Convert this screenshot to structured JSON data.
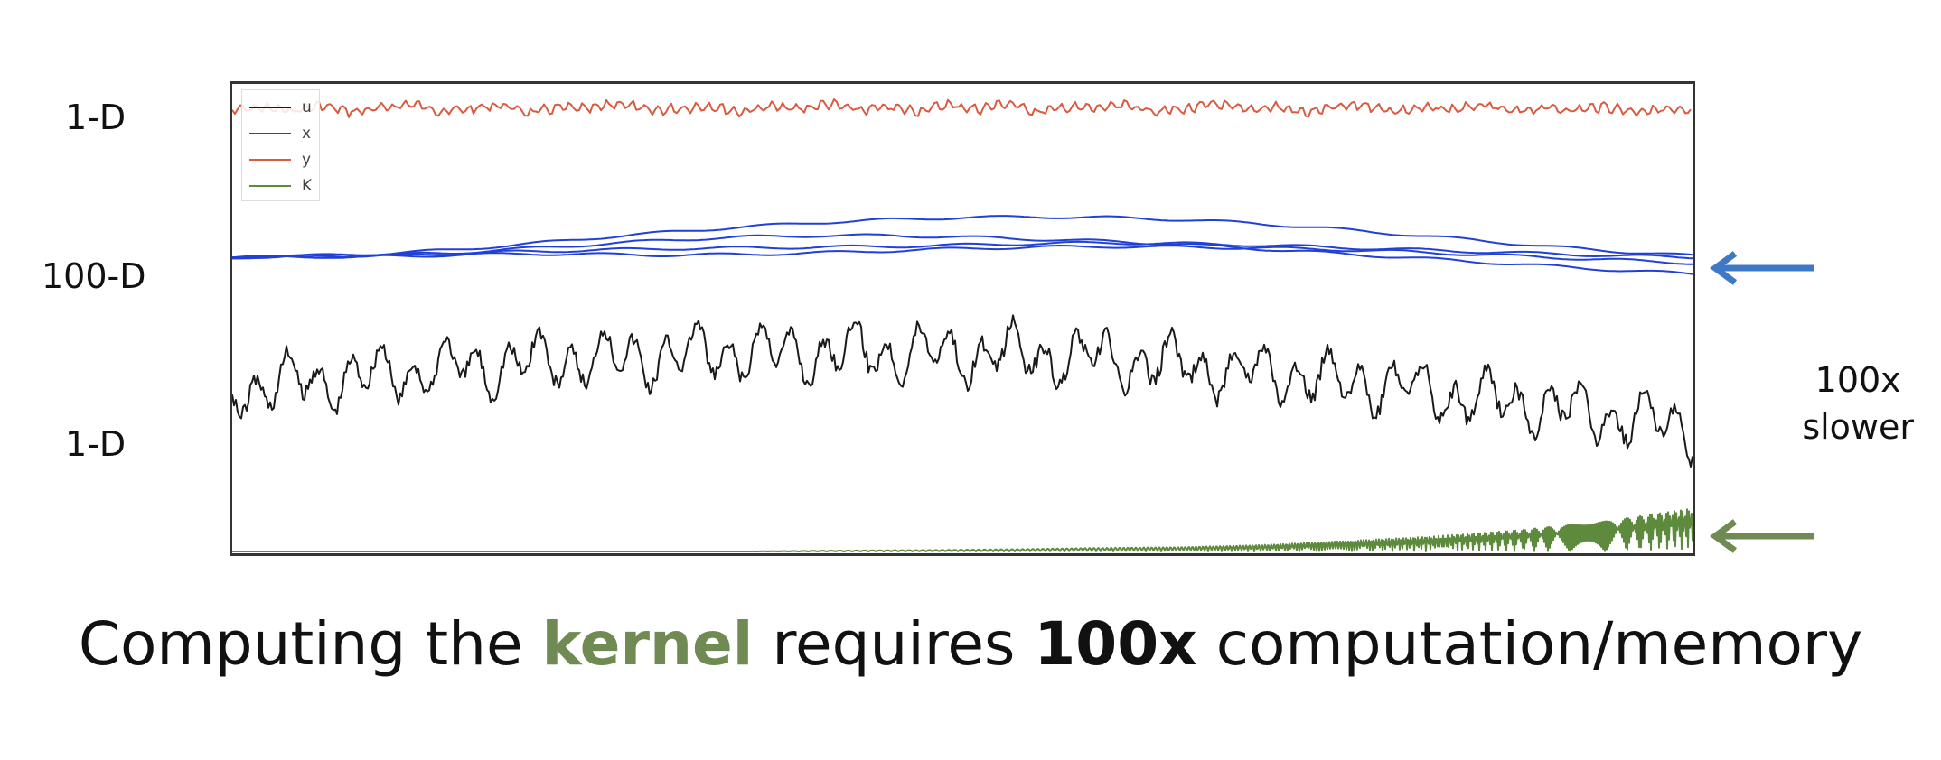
{
  "row_labels": {
    "top": "1-D",
    "middle": "100-D",
    "bottom": "1-D"
  },
  "side_label": {
    "line1": "100x",
    "line2": "slower"
  },
  "caption": {
    "part1": "Computing the ",
    "keyword": "kernel",
    "part2": " requires ",
    "emphasis": "100x",
    "part3": " computation/memory"
  },
  "colors": {
    "u": "#1a1a1a",
    "x": "#2140d8",
    "y": "#d95a3f",
    "K": "#5d8a3c",
    "keyword": "#6f8a52",
    "arrow_blue": "#3f78c4",
    "arrow_green": "#6f8a52"
  },
  "chart_data": {
    "type": "line",
    "legend": [
      "u",
      "x",
      "y",
      "K"
    ],
    "legend_position": "top-left",
    "grid": false,
    "axes_ticks": false,
    "series": [
      {
        "name": "y",
        "dimension": "1-D",
        "values": [
          0.55,
          0.7,
          0.5,
          0.8,
          0.45,
          0.65,
          0.9,
          0.5,
          0.6,
          0.85,
          0.4,
          0.7,
          0.6,
          0.95,
          0.5,
          0.65,
          0.8,
          0.45,
          0.75,
          0.6,
          0.9,
          0.55,
          0.7,
          0.5,
          0.85,
          0.6,
          0.95,
          0.45,
          0.7,
          0.65,
          0.8,
          0.5,
          0.6,
          0.9,
          0.55,
          0.75,
          0.4,
          0.7,
          0.85,
          0.5,
          0.65,
          0.6,
          0.8,
          0.45,
          0.7,
          0.55,
          0.75,
          0.5,
          0.6,
          0.4
        ]
      },
      {
        "name": "x",
        "dimension": "100-D",
        "traces": [
          [
            0.0,
            0.02,
            0.05,
            0.1,
            0.18,
            0.27,
            0.35,
            0.42,
            0.48,
            0.52,
            0.55,
            0.56,
            0.55,
            0.52,
            0.47,
            0.4,
            0.32,
            0.24,
            0.15,
            0.08,
            0.02
          ],
          [
            0.0,
            0.01,
            0.03,
            0.06,
            0.12,
            0.18,
            0.24,
            0.28,
            0.3,
            0.3,
            0.28,
            0.25,
            0.22,
            0.18,
            0.12,
            0.06,
            0.0,
            -0.06,
            -0.12,
            -0.18,
            -0.23
          ],
          [
            0.0,
            0.0,
            0.02,
            0.05,
            0.08,
            0.1,
            0.12,
            0.13,
            0.14,
            0.15,
            0.17,
            0.19,
            0.2,
            0.19,
            0.17,
            0.14,
            0.11,
            0.08,
            0.05,
            0.02,
            0.0
          ],
          [
            0.0,
            0.01,
            0.01,
            0.03,
            0.05,
            0.04,
            0.03,
            0.04,
            0.06,
            0.09,
            0.12,
            0.14,
            0.15,
            0.14,
            0.13,
            0.11,
            0.08,
            0.04,
            0.0,
            -0.04,
            -0.08
          ]
        ]
      },
      {
        "name": "u",
        "dimension": "1-D",
        "trend": [
          0.35,
          0.5,
          0.62,
          0.68,
          0.7,
          0.66,
          0.55,
          0.4,
          0.2,
          0.0
        ]
      },
      {
        "name": "K",
        "dimension": "kernel",
        "values": [
          0,
          0,
          0,
          0,
          0,
          0,
          0,
          0.02,
          0.03,
          0.05,
          0.08,
          0.1,
          0.15,
          0.25,
          0.35,
          0.5,
          0.7,
          1.0
        ]
      }
    ]
  }
}
